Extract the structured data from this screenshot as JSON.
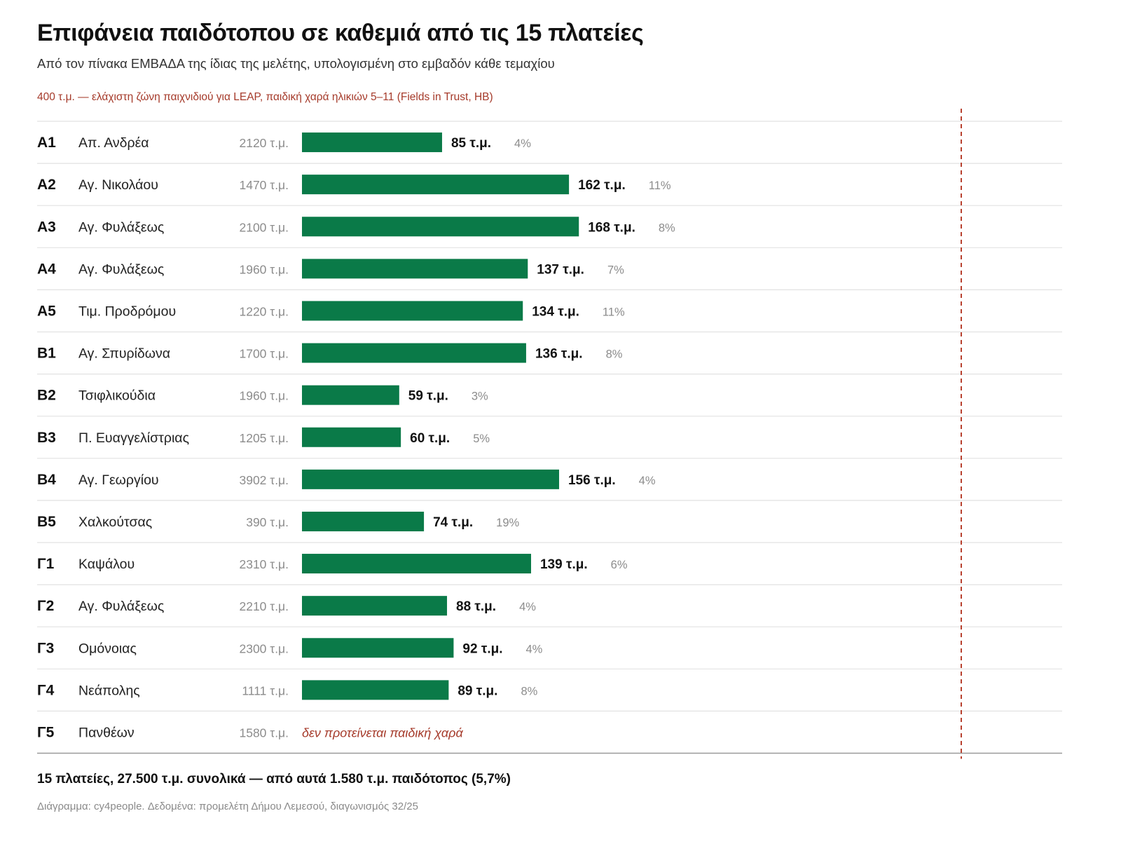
{
  "title": "Επιφάνεια παιδότοπου σε καθεμιά από τις 15 πλατείες",
  "subtitle": "Από τον πίνακα ΕΜΒΑΔΑ της ίδιας της μελέτης, υπολογισμένη στο εμβαδόν κάθε τεμαχίου",
  "reference_note": "400 τ.μ. — ελάχιστη ζώνη παιχνιδιού για LEAP, παιδική χαρά ηλικιών 5–11 (Fields in Trust, HB)",
  "summary": "15 πλατείες, 27.500 τ.μ. συνολικά — από αυτά 1.580 τ.μ. παιδότοπος (5,7%)",
  "source": "Διάγραμμα: cy4people. Δεδομένα: προμελέτη Δήμου Λεμεσού, διαγωνισμός 32/25",
  "colors": {
    "bar": "#0a7a48",
    "reference": "#b8412f",
    "no_playground_text": "#a53a2a",
    "row_line": "#e2e2e2",
    "base_line": "#9a9a9a"
  },
  "chart_data": {
    "type": "bar",
    "orientation": "horizontal",
    "unit": "τ.μ.",
    "xlim": [
      0,
      400
    ],
    "reference_value": 400,
    "rows": [
      {
        "code": "Α1",
        "name": "Απ. Ανδρέα",
        "total": "2120 τ.μ.",
        "value": 85,
        "value_label": "85 τ.μ.",
        "pct": "4%"
      },
      {
        "code": "Α2",
        "name": "Αγ. Νικολάου",
        "total": "1470 τ.μ.",
        "value": 162,
        "value_label": "162 τ.μ.",
        "pct": "11%"
      },
      {
        "code": "Α3",
        "name": "Αγ. Φυλάξεως",
        "total": "2100 τ.μ.",
        "value": 168,
        "value_label": "168 τ.μ.",
        "pct": "8%"
      },
      {
        "code": "Α4",
        "name": "Αγ. Φυλάξεως",
        "total": "1960 τ.μ.",
        "value": 137,
        "value_label": "137 τ.μ.",
        "pct": "7%"
      },
      {
        "code": "Α5",
        "name": "Τιμ. Προδρόμου",
        "total": "1220 τ.μ.",
        "value": 134,
        "value_label": "134 τ.μ.",
        "pct": "11%"
      },
      {
        "code": "Β1",
        "name": "Αγ. Σπυρίδωνα",
        "total": "1700 τ.μ.",
        "value": 136,
        "value_label": "136 τ.μ.",
        "pct": "8%"
      },
      {
        "code": "Β2",
        "name": "Τσιφλικούδια",
        "total": "1960 τ.μ.",
        "value": 59,
        "value_label": "59 τ.μ.",
        "pct": "3%"
      },
      {
        "code": "Β3",
        "name": "Π. Ευαγγελίστριας",
        "total": "1205 τ.μ.",
        "value": 60,
        "value_label": "60 τ.μ.",
        "pct": "5%"
      },
      {
        "code": "Β4",
        "name": "Αγ. Γεωργίου",
        "total": "3902 τ.μ.",
        "value": 156,
        "value_label": "156 τ.μ.",
        "pct": "4%"
      },
      {
        "code": "Β5",
        "name": "Χαλκούτσας",
        "total": "390 τ.μ.",
        "value": 74,
        "value_label": "74 τ.μ.",
        "pct": "19%"
      },
      {
        "code": "Γ1",
        "name": "Καψάλου",
        "total": "2310 τ.μ.",
        "value": 139,
        "value_label": "139 τ.μ.",
        "pct": "6%"
      },
      {
        "code": "Γ2",
        "name": "Αγ. Φυλάξεως",
        "total": "2210 τ.μ.",
        "value": 88,
        "value_label": "88 τ.μ.",
        "pct": "4%"
      },
      {
        "code": "Γ3",
        "name": "Ομόνοιας",
        "total": "2300 τ.μ.",
        "value": 92,
        "value_label": "92 τ.μ.",
        "pct": "4%"
      },
      {
        "code": "Γ4",
        "name": "Νεάπολης",
        "total": "1111 τ.μ.",
        "value": 89,
        "value_label": "89 τ.μ.",
        "pct": "8%"
      },
      {
        "code": "Γ5",
        "name": "Πανθέων",
        "total": "1580 τ.μ.",
        "value": null,
        "note": "δεν προτείνεται παιδική χαρά"
      }
    ]
  }
}
